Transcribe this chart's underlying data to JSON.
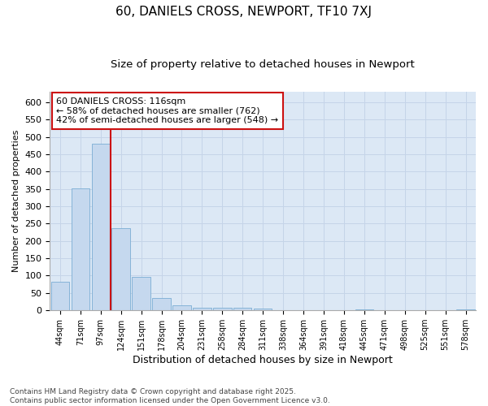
{
  "title": "60, DANIELS CROSS, NEWPORT, TF10 7XJ",
  "subtitle": "Size of property relative to detached houses in Newport",
  "xlabel": "Distribution of detached houses by size in Newport",
  "ylabel": "Number of detached properties",
  "footnote": "Contains HM Land Registry data © Crown copyright and database right 2025.\nContains public sector information licensed under the Open Government Licence v3.0.",
  "categories": [
    "44sqm",
    "71sqm",
    "97sqm",
    "124sqm",
    "151sqm",
    "178sqm",
    "204sqm",
    "231sqm",
    "258sqm",
    "284sqm",
    "311sqm",
    "338sqm",
    "364sqm",
    "391sqm",
    "418sqm",
    "445sqm",
    "471sqm",
    "498sqm",
    "525sqm",
    "551sqm",
    "578sqm"
  ],
  "values": [
    82,
    352,
    480,
    238,
    96,
    35,
    15,
    7,
    8,
    8,
    5,
    0,
    0,
    0,
    0,
    3,
    0,
    0,
    0,
    0,
    3
  ],
  "bar_color": "#c5d8ee",
  "bar_edge_color": "#7aadd4",
  "grid_color": "#c5d4e8",
  "background_color": "#dce8f5",
  "vline_x": 2.5,
  "vline_color": "#cc1111",
  "annotation_text": "60 DANIELS CROSS: 116sqm\n← 58% of detached houses are smaller (762)\n42% of semi-detached houses are larger (548) →",
  "annotation_box_facecolor": "#ffffff",
  "annotation_box_edgecolor": "#cc1111",
  "ylim": [
    0,
    630
  ],
  "yticks": [
    0,
    50,
    100,
    150,
    200,
    250,
    300,
    350,
    400,
    450,
    500,
    550,
    600
  ],
  "title_fontsize": 11,
  "subtitle_fontsize": 9.5,
  "xlabel_fontsize": 9,
  "ylabel_fontsize": 8,
  "tick_fontsize": 8,
  "annotation_fontsize": 8,
  "footnote_fontsize": 6.5
}
